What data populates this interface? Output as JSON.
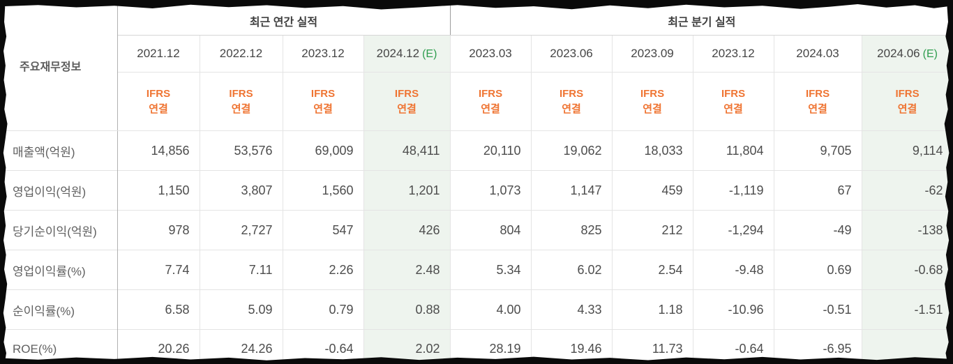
{
  "table": {
    "corner_label": "주요재무정보",
    "sections": [
      {
        "title": "최근 연간 실적",
        "col_span": 4
      },
      {
        "title": "최근 분기 실적",
        "col_span": 6
      }
    ],
    "estimate_suffix": "(E)",
    "ifrs_label": {
      "line1": "IFRS",
      "line2": "연결"
    },
    "columns": [
      {
        "label": "2021.12",
        "estimate": false
      },
      {
        "label": "2022.12",
        "estimate": false
      },
      {
        "label": "2023.12",
        "estimate": false
      },
      {
        "label": "2024.12",
        "estimate": true
      },
      {
        "label": "2023.03",
        "estimate": false
      },
      {
        "label": "2023.06",
        "estimate": false
      },
      {
        "label": "2023.09",
        "estimate": false
      },
      {
        "label": "2023.12",
        "estimate": false
      },
      {
        "label": "2024.03",
        "estimate": false
      },
      {
        "label": "2024.06",
        "estimate": true
      }
    ],
    "rows": [
      {
        "label": "매출액(억원)",
        "values": [
          "14,856",
          "53,576",
          "69,009",
          "48,411",
          "20,110",
          "19,062",
          "18,033",
          "11,804",
          "9,705",
          "9,114"
        ]
      },
      {
        "label": "영업이익(억원)",
        "values": [
          "1,150",
          "3,807",
          "1,560",
          "1,201",
          "1,073",
          "1,147",
          "459",
          "-1,119",
          "67",
          "-62"
        ]
      },
      {
        "label": "당기순이익(억원)",
        "values": [
          "978",
          "2,727",
          "547",
          "426",
          "804",
          "825",
          "212",
          "-1,294",
          "-49",
          "-138"
        ]
      },
      {
        "label": "영업이익률(%)",
        "values": [
          "7.74",
          "7.11",
          "2.26",
          "2.48",
          "5.34",
          "6.02",
          "2.54",
          "-9.48",
          "0.69",
          "-0.68"
        ]
      },
      {
        "label": "순이익률(%)",
        "values": [
          "6.58",
          "5.09",
          "0.79",
          "0.88",
          "4.00",
          "4.33",
          "1.18",
          "-10.96",
          "-0.51",
          "-1.51"
        ]
      },
      {
        "label": "ROE(%)",
        "values": [
          "20.26",
          "24.26",
          "-0.64",
          "2.02",
          "28.19",
          "19.46",
          "11.73",
          "-0.64",
          "-6.95",
          ""
        ]
      }
    ]
  },
  "colors": {
    "accent_orange": "#ef7432",
    "estimate_text_green": "#2f9d4f",
    "estimate_bg_green": "#eef4ee",
    "negative_red": "#f01010",
    "number_text": "#4d4d4d",
    "label_text": "#606060",
    "border_light": "#e4e4e4",
    "border_section": "#9c9c9c"
  }
}
